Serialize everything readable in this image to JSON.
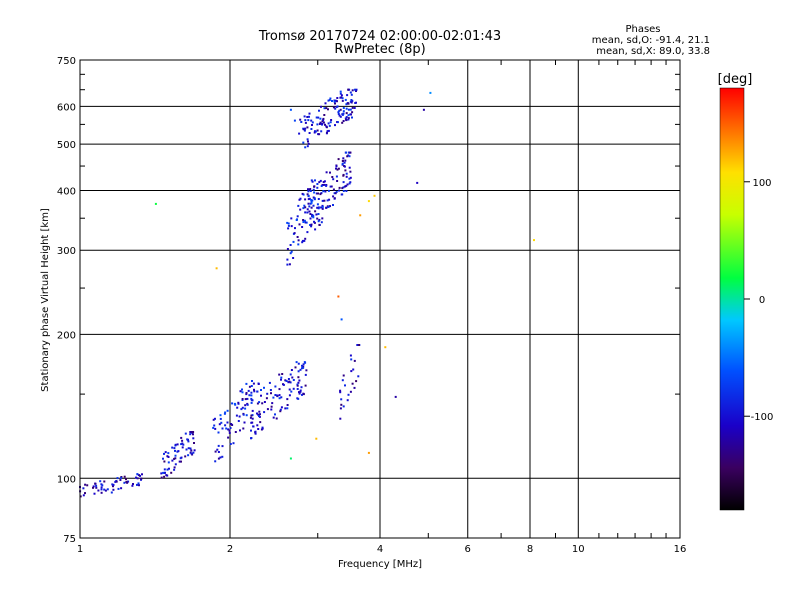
{
  "chart_data": {
    "type": "scatter",
    "title": "Tromsø 20170724 02:00:00-02:01:43",
    "subtitle": "RwPretec (8p)",
    "xlabel": "Frequency [MHz]",
    "ylabel": "Stationary phase Virtual Height [km]",
    "x_scale": "log",
    "y_scale": "log",
    "xlim": [
      1,
      16
    ],
    "ylim": [
      75,
      750
    ],
    "x_ticks": [
      1,
      2,
      4,
      6,
      8,
      10,
      16
    ],
    "x_tick_labels": [
      "1",
      "2",
      "4",
      "6",
      "8",
      "10",
      "16"
    ],
    "y_ticks": [
      75,
      100,
      200,
      300,
      400,
      500,
      600,
      750
    ],
    "y_tick_labels": [
      "75",
      "100",
      "200",
      "300",
      "400",
      "500",
      "600",
      "750"
    ],
    "grid": true,
    "stats": {
      "heading": "Phases",
      "line1": "mean, sd,O: -91.4, 21.1",
      "line2": "mean, sd,X: 89.0, 33.8"
    },
    "colorbar": {
      "label": "[deg]",
      "range": [
        -180,
        180
      ],
      "ticks": [
        100,
        0,
        -100
      ],
      "tick_labels": [
        "100",
        "0",
        "-100"
      ]
    },
    "clusters": [
      {
        "name": "low-E trace",
        "x_range": [
          1.0,
          1.35
        ],
        "y_range": [
          90,
          102
        ],
        "phase": -110,
        "count": 60
      },
      {
        "name": "E-region",
        "x_range": [
          1.45,
          1.7
        ],
        "y_range": [
          98,
          125
        ],
        "phase": -105,
        "count": 70
      },
      {
        "name": "F1 lower",
        "x_range": [
          1.85,
          2.3
        ],
        "y_range": [
          105,
          160
        ],
        "phase": -95,
        "count": 90
      },
      {
        "name": "F1 upper",
        "x_range": [
          2.2,
          2.85
        ],
        "y_range": [
          120,
          175
        ],
        "phase": -100,
        "count": 110
      },
      {
        "name": "F2 lower",
        "x_range": [
          2.6,
          3.0
        ],
        "y_range": [
          270,
          420
        ],
        "phase": -95,
        "count": 80
      },
      {
        "name": "F2 mid",
        "x_range": [
          2.9,
          3.5
        ],
        "y_range": [
          320,
          480
        ],
        "phase": -105,
        "count": 120
      },
      {
        "name": "F2 upper",
        "x_range": [
          2.75,
          3.6
        ],
        "y_range": [
          480,
          650
        ],
        "phase": -100,
        "count": 140
      },
      {
        "name": "F2 spread",
        "x_range": [
          3.3,
          3.65
        ],
        "y_range": [
          130,
          190
        ],
        "phase": -110,
        "count": 25
      }
    ],
    "points": [
      {
        "x": 1.42,
        "y": 375,
        "phase": 20
      },
      {
        "x": 1.88,
        "y": 275,
        "phase": 120
      },
      {
        "x": 3.3,
        "y": 240,
        "phase": 150
      },
      {
        "x": 3.35,
        "y": 215,
        "phase": -60
      },
      {
        "x": 3.65,
        "y": 355,
        "phase": 130
      },
      {
        "x": 3.8,
        "y": 380,
        "phase": 110
      },
      {
        "x": 3.9,
        "y": 390,
        "phase": 115
      },
      {
        "x": 4.1,
        "y": 188,
        "phase": 120
      },
      {
        "x": 4.3,
        "y": 148,
        "phase": -120
      },
      {
        "x": 3.8,
        "y": 113,
        "phase": 130
      },
      {
        "x": 2.65,
        "y": 110,
        "phase": 10
      },
      {
        "x": 2.98,
        "y": 121,
        "phase": 120
      },
      {
        "x": 4.75,
        "y": 415,
        "phase": -110
      },
      {
        "x": 4.9,
        "y": 590,
        "phase": -120
      },
      {
        "x": 5.05,
        "y": 640,
        "phase": -40
      },
      {
        "x": 8.15,
        "y": 315,
        "phase": 110
      },
      {
        "x": 2.65,
        "y": 590,
        "phase": -60
      },
      {
        "x": 2.7,
        "y": 560,
        "phase": -70
      }
    ]
  }
}
